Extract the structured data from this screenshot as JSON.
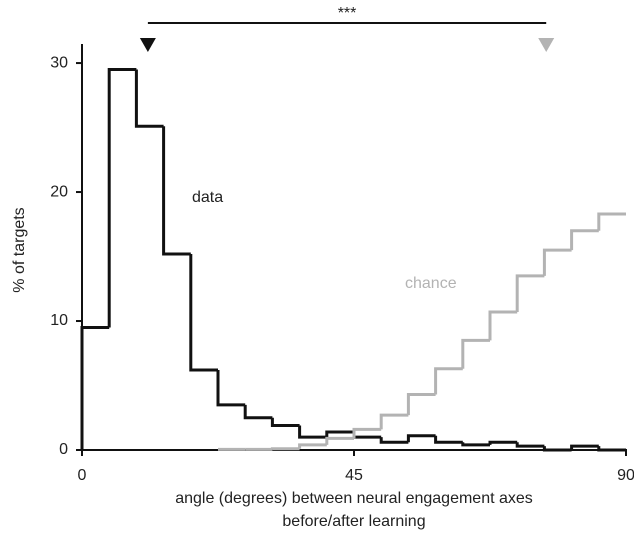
{
  "chart_data": {
    "type": "histogram",
    "xlabel": "angle (degrees) between neural engagement axes",
    "xlabel2": "before/after learning",
    "ylabel": "% of targets",
    "bins": [
      0,
      4.5,
      9,
      13.5,
      18,
      22.5,
      27,
      31.5,
      36,
      40.5,
      45,
      49.5,
      54,
      58.5,
      63,
      67.5,
      72,
      76.5,
      81,
      85.5,
      90
    ],
    "series": [
      {
        "name": "data",
        "color": "#111111",
        "values": [
          9.5,
          29.5,
          25.1,
          15.2,
          6.2,
          3.5,
          2.5,
          1.9,
          1.0,
          1.4,
          1.0,
          0.6,
          1.1,
          0.6,
          0.4,
          0.6,
          0.3,
          0.0,
          0.3,
          0.0
        ]
      },
      {
        "name": "chance",
        "color": "#b3b3b3",
        "values": [
          null,
          null,
          null,
          null,
          null,
          0.05,
          0.05,
          0.1,
          0.4,
          0.9,
          1.6,
          2.7,
          4.3,
          6.3,
          8.5,
          10.7,
          13.5,
          15.5,
          17.0,
          18.3
        ]
      }
    ],
    "medians": [
      {
        "value": 10.9,
        "color": "#111111"
      },
      {
        "value": 76.8,
        "color": "#b3b3b3"
      }
    ],
    "significance": "***",
    "xlim": [
      0,
      90
    ],
    "xticks": [
      0,
      45,
      90
    ],
    "ylim": [
      0,
      31.4
    ],
    "yticks": [
      0,
      10,
      20,
      30
    ]
  }
}
